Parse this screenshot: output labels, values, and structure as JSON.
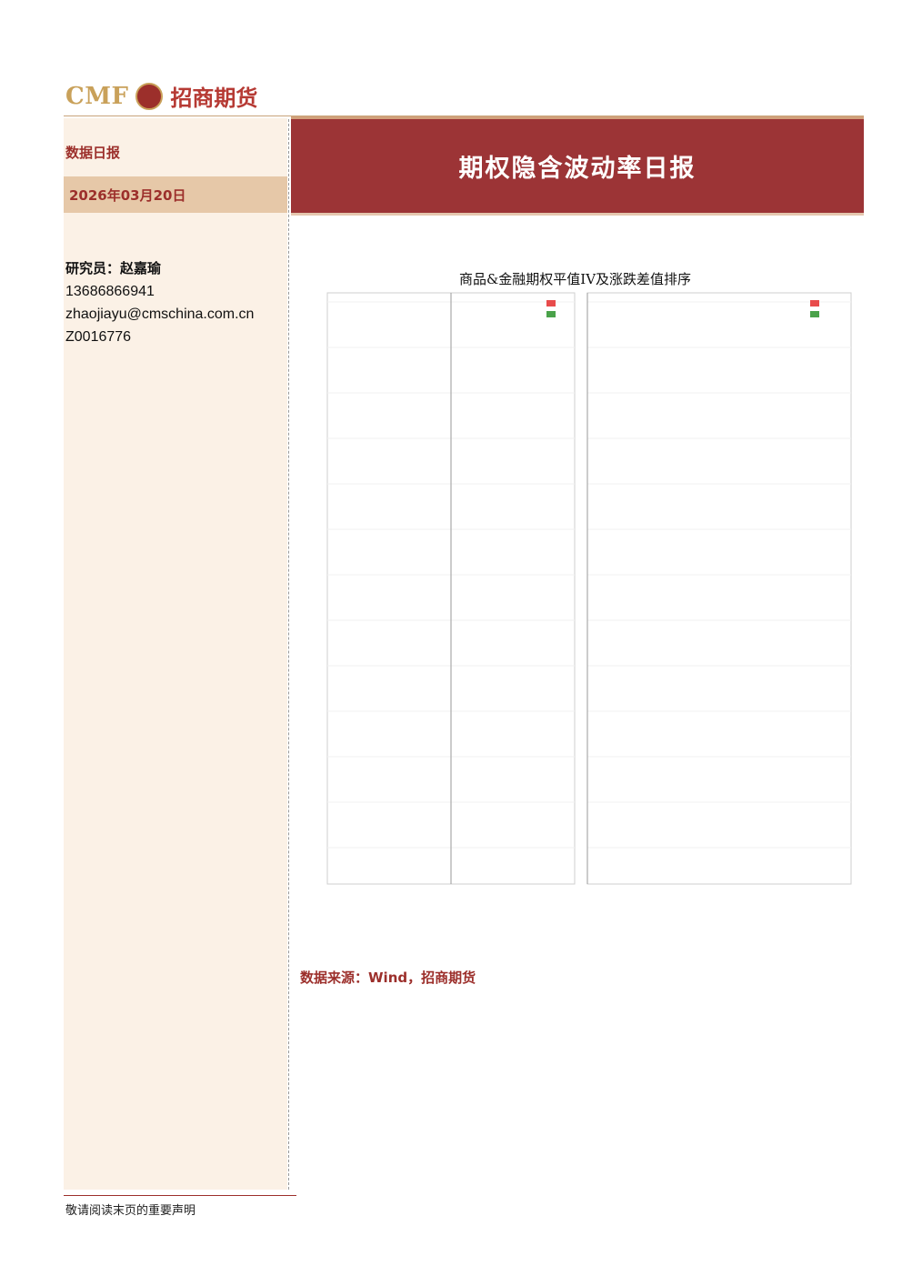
{
  "header": {
    "logo_en": "CMF",
    "logo_badge": "",
    "logo_cn": "招商期货"
  },
  "left": {
    "report_type": "数据日报",
    "date": "2026年03月20日",
    "researcher_title": "研究员：赵嘉瑜",
    "phone": "13686866941",
    "email": "zhaojiayu@cmschina.com.cn",
    "license": "Z0016776"
  },
  "main": {
    "title": "期权隐含波动率日报",
    "source": "数据来源：Wind，招商期货"
  },
  "footer": {
    "disclaimer": "敬请阅读末页的重要声明"
  },
  "colors": {
    "up_red": "#e84b4b",
    "down_green": "#4aa24a",
    "brand_red": "#9c3436",
    "paper_panel": "#fbf1e6"
  },
  "chart_data": {
    "type": "bar",
    "title": "商品&金融期权平值IV及涨跌差值排序",
    "panels": [
      {
        "name": "left",
        "categories": [],
        "series": [],
        "xlabel": "",
        "ylabel": ""
      },
      {
        "name": "right",
        "categories": [],
        "series": [],
        "xlabel": "",
        "ylabel": ""
      }
    ]
  }
}
